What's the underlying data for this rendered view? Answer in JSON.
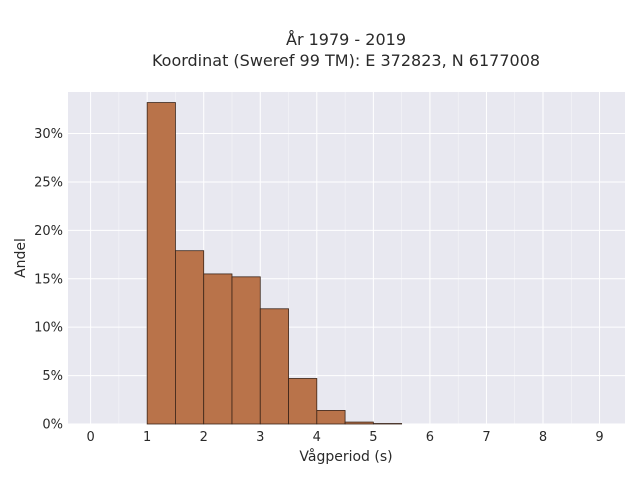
{
  "chart_data": {
    "type": "bar",
    "title_lines": [
      "År 1979 - 2019",
      "Koordinat (Sweref 99 TM): E 372823, N 6177008"
    ],
    "xlabel": "Vågperiod (s)",
    "ylabel": "Andel",
    "xlim": [
      -0.4,
      9.45
    ],
    "ylim": [
      0,
      0.3429
    ],
    "x_ticks": [
      0,
      1,
      2,
      3,
      4,
      5,
      6,
      7,
      8,
      9
    ],
    "y_ticks": [
      0,
      0.05,
      0.1,
      0.15,
      0.2,
      0.25,
      0.3
    ],
    "y_tick_labels": [
      "0%",
      "5%",
      "10%",
      "15%",
      "20%",
      "25%",
      "30%"
    ],
    "bin_width": 0.5,
    "bins": [
      {
        "x0": 1.0,
        "value": 0.332
      },
      {
        "x0": 1.5,
        "value": 0.179
      },
      {
        "x0": 2.0,
        "value": 0.155
      },
      {
        "x0": 2.5,
        "value": 0.152
      },
      {
        "x0": 3.0,
        "value": 0.119
      },
      {
        "x0": 3.5,
        "value": 0.047
      },
      {
        "x0": 4.0,
        "value": 0.014
      },
      {
        "x0": 4.5,
        "value": 0.002
      },
      {
        "x0": 5.0,
        "value": 0.0005
      }
    ],
    "grid": true,
    "legend": "none",
    "colors": {
      "bar_fill": "#b9734a",
      "bar_edge": "#3a2418",
      "plot_bg": "#e8e8f0",
      "grid": "#ffffff"
    }
  }
}
